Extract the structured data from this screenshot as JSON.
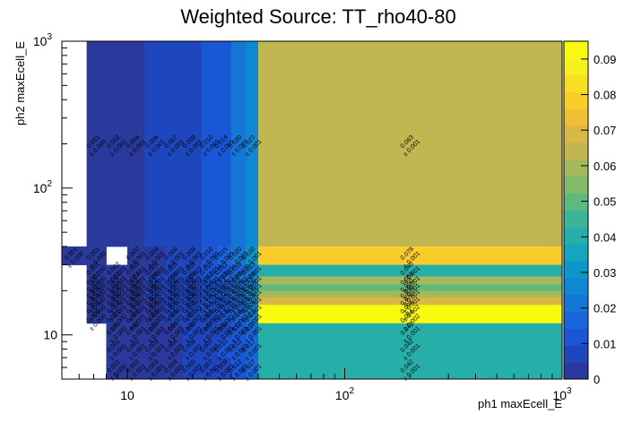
{
  "chart_data": {
    "type": "heatmap",
    "title": "Weighted Source: TT_rho40-80",
    "xlabel": "ph1 maxEcell_E",
    "ylabel": "ph2 maxEcell_E",
    "x_scale": "log",
    "y_scale": "log",
    "xlim": [
      5,
      1000
    ],
    "ylim": [
      5,
      1000
    ],
    "x_ticks": [
      {
        "base": "10",
        "exp": "",
        "value": 10
      },
      {
        "base": "10",
        "exp": "2",
        "value": 100
      },
      {
        "base": "10",
        "exp": "3",
        "value": 1000
      }
    ],
    "y_ticks": [
      {
        "base": "10",
        "exp": "",
        "value": 10
      },
      {
        "base": "10",
        "exp": "2",
        "value": 100
      },
      {
        "base": "10",
        "exp": "3",
        "value": 1000
      }
    ],
    "x_edges": [
      5,
      6.5,
      8,
      10,
      12,
      15,
      18,
      22,
      26,
      30,
      35,
      40,
      1000
    ],
    "y_edges": [
      5,
      7,
      9.5,
      12,
      14,
      16,
      18,
      20,
      22,
      25,
      30,
      40,
      1000
    ],
    "z_range": [
      0,
      0.095
    ],
    "colorbar_ticks": [
      "0",
      "0.01",
      "0.02",
      "0.03",
      "0.04",
      "0.05",
      "0.06",
      "0.07",
      "0.08",
      "0.09"
    ],
    "colorbar_tick_values": [
      0,
      0.01,
      0.02,
      0.03,
      0.04,
      0.05,
      0.06,
      0.07,
      0.08,
      0.09
    ],
    "palette": [
      "#2a3a9c",
      "#1f47bd",
      "#1a57d6",
      "#1966da",
      "#1476d7",
      "#0e88d2",
      "#0a98c9",
      "#16a5bd",
      "#26afa9",
      "#3cb495",
      "#5cba7f",
      "#7fbb6a",
      "#a3b95c",
      "#c1b650",
      "#d8b946",
      "#efbf36",
      "#fbcd2b",
      "#f8df22",
      "#f5f11c",
      "#f9fb0e"
    ],
    "cells": [
      {
        "xi": 1,
        "yi": 11,
        "value": 0.001,
        "label": "0.001",
        "error": "± 0.000"
      },
      {
        "xi": 2,
        "yi": 11,
        "value": 0.002,
        "label": "0.002",
        "error": "± 0.001"
      },
      {
        "xi": 3,
        "yi": 11,
        "value": 0.004,
        "label": "0.004",
        "error": "± 0.001"
      },
      {
        "xi": 4,
        "yi": 11,
        "value": 0.006,
        "label": "0.006",
        "error": "± 0.001"
      },
      {
        "xi": 5,
        "yi": 11,
        "value": 0.007,
        "label": "0.007",
        "error": "± 0.001"
      },
      {
        "xi": 6,
        "yi": 11,
        "value": 0.009,
        "label": "0.009",
        "error": "± 0.001"
      },
      {
        "xi": 7,
        "yi": 11,
        "value": 0.01,
        "label": "0.010",
        "error": "± 0.001"
      },
      {
        "xi": 8,
        "yi": 11,
        "value": 0.014,
        "label": "0.014",
        "error": "± 0.001"
      },
      {
        "xi": 9,
        "yi": 11,
        "value": 0.02,
        "label": "0.020",
        "error": "± 0.001"
      },
      {
        "xi": 10,
        "yi": 11,
        "value": 0.027,
        "label": "0.027",
        "error": "± 0.001"
      },
      {
        "xi": 11,
        "yi": 11,
        "value": 0.063,
        "label": "0.063",
        "error": "± 0.001"
      },
      {
        "xi": 0,
        "yi": 10,
        "value": 0.001,
        "label": "0.001",
        "error": "± 0.000"
      },
      {
        "xi": 1,
        "yi": 10,
        "value": 0.001,
        "label": "0.001",
        "error": "± 0.000"
      },
      {
        "xi": 3,
        "yi": 10,
        "value": 0.002,
        "label": "0.002",
        "error": "± 0.001"
      },
      {
        "xi": 4,
        "yi": 10,
        "value": 0.004,
        "label": "0.004",
        "error": "± 0.001"
      },
      {
        "xi": 5,
        "yi": 10,
        "value": 0.006,
        "label": "0.006",
        "error": "± 0.001"
      },
      {
        "xi": 6,
        "yi": 10,
        "value": 0.008,
        "label": "0.008",
        "error": "± 0.001"
      },
      {
        "xi": 7,
        "yi": 10,
        "value": 0.01,
        "label": "0.010",
        "error": "± 0.001"
      },
      {
        "xi": 8,
        "yi": 10,
        "value": 0.015,
        "label": "0.015",
        "error": "± 0.001"
      },
      {
        "xi": 9,
        "yi": 10,
        "value": 0.02,
        "label": "0.020",
        "error": "± 0.001"
      },
      {
        "xi": 10,
        "yi": 10,
        "value": 0.03,
        "label": "0.030",
        "error": "± 0.001"
      },
      {
        "xi": 11,
        "yi": 10,
        "value": 0.078,
        "label": "0.078",
        "error": "± 0.001"
      },
      {
        "xi": 1,
        "yi": 9,
        "value": 0.001,
        "label": "0.001",
        "error": "± 0.000"
      },
      {
        "xi": 2,
        "yi": 9,
        "value": 0.002,
        "label": "0.002",
        "error": "± 0.001"
      },
      {
        "xi": 3,
        "yi": 9,
        "value": 0.003,
        "label": "0.003",
        "error": "± 0.001"
      },
      {
        "xi": 4,
        "yi": 9,
        "value": 0.004,
        "label": "0.004",
        "error": "± 0.001"
      },
      {
        "xi": 5,
        "yi": 9,
        "value": 0.005,
        "label": "0.005",
        "error": "± 0.001"
      },
      {
        "xi": 6,
        "yi": 9,
        "value": 0.008,
        "label": "0.008",
        "error": "± 0.001"
      },
      {
        "xi": 7,
        "yi": 9,
        "value": 0.01,
        "label": "0.010",
        "error": "± 0.001"
      },
      {
        "xi": 8,
        "yi": 9,
        "value": 0.012,
        "label": "0.012",
        "error": "± 0.001"
      },
      {
        "xi": 9,
        "yi": 9,
        "value": 0.016,
        "label": "0.016",
        "error": "± 0.001"
      },
      {
        "xi": 10,
        "yi": 9,
        "value": 0.023,
        "label": "0.023",
        "error": "± 0.001"
      },
      {
        "xi": 11,
        "yi": 9,
        "value": 0.04,
        "label": "0.040",
        "error": "± 0.001"
      },
      {
        "xi": 1,
        "yi": 8,
        "value": 0.001,
        "label": "0.001",
        "error": "± 0.000"
      },
      {
        "xi": 2,
        "yi": 8,
        "value": 0.002,
        "label": "0.002",
        "error": "± 0.001"
      },
      {
        "xi": 3,
        "yi": 8,
        "value": 0.003,
        "label": "0.003",
        "error": "± 0.001"
      },
      {
        "xi": 4,
        "yi": 8,
        "value": 0.005,
        "label": "0.005",
        "error": "± 0.001"
      },
      {
        "xi": 5,
        "yi": 8,
        "value": 0.006,
        "label": "0.006",
        "error": "± 0.001"
      },
      {
        "xi": 6,
        "yi": 8,
        "value": 0.009,
        "label": "0.009",
        "error": "± 0.001"
      },
      {
        "xi": 7,
        "yi": 8,
        "value": 0.012,
        "label": "0.012",
        "error": "± 0.001"
      },
      {
        "xi": 8,
        "yi": 8,
        "value": 0.015,
        "label": "0.015",
        "error": "± 0.001"
      },
      {
        "xi": 9,
        "yi": 8,
        "value": 0.02,
        "label": "0.020",
        "error": "± 0.001"
      },
      {
        "xi": 10,
        "yi": 8,
        "value": 0.028,
        "label": "0.028",
        "error": "± 0.001"
      },
      {
        "xi": 11,
        "yi": 8,
        "value": 0.059,
        "label": "0.059",
        "error": "± 0.001"
      },
      {
        "xi": 1,
        "yi": 7,
        "value": 0.001,
        "label": "0.001",
        "error": "± 0.000"
      },
      {
        "xi": 2,
        "yi": 7,
        "value": 0.002,
        "label": "0.002",
        "error": "± 0.001"
      },
      {
        "xi": 3,
        "yi": 7,
        "value": 0.003,
        "label": "0.003",
        "error": "± 0.001"
      },
      {
        "xi": 4,
        "yi": 7,
        "value": 0.004,
        "label": "0.004",
        "error": "± 0.001"
      },
      {
        "xi": 5,
        "yi": 7,
        "value": 0.006,
        "label": "0.006",
        "error": "± 0.001"
      },
      {
        "xi": 6,
        "yi": 7,
        "value": 0.008,
        "label": "0.008",
        "error": "± 0.001"
      },
      {
        "xi": 7,
        "yi": 7,
        "value": 0.011,
        "label": "0.011",
        "error": "± 0.001"
      },
      {
        "xi": 8,
        "yi": 7,
        "value": 0.014,
        "label": "0.014",
        "error": "± 0.001"
      },
      {
        "xi": 9,
        "yi": 7,
        "value": 0.019,
        "label": "0.019",
        "error": "± 0.001"
      },
      {
        "xi": 10,
        "yi": 7,
        "value": 0.026,
        "label": "0.026",
        "error": "± 0.001"
      },
      {
        "xi": 11,
        "yi": 7,
        "value": 0.05,
        "label": "0.050",
        "error": "± 0.001"
      },
      {
        "xi": 1,
        "yi": 6,
        "value": 0.001,
        "label": "0.001",
        "error": "± 0.000"
      },
      {
        "xi": 2,
        "yi": 6,
        "value": 0.002,
        "label": "0.002",
        "error": "± 0.001"
      },
      {
        "xi": 3,
        "yi": 6,
        "value": 0.003,
        "label": "0.003",
        "error": "± 0.001"
      },
      {
        "xi": 4,
        "yi": 6,
        "value": 0.005,
        "label": "0.005",
        "error": "± 0.001"
      },
      {
        "xi": 5,
        "yi": 6,
        "value": 0.007,
        "label": "0.007",
        "error": "± 0.001"
      },
      {
        "xi": 6,
        "yi": 6,
        "value": 0.009,
        "label": "0.009",
        "error": "± 0.001"
      },
      {
        "xi": 7,
        "yi": 6,
        "value": 0.012,
        "label": "0.012",
        "error": "± 0.001"
      },
      {
        "xi": 8,
        "yi": 6,
        "value": 0.016,
        "label": "0.016",
        "error": "± 0.001"
      },
      {
        "xi": 9,
        "yi": 6,
        "value": 0.021,
        "label": "0.021",
        "error": "± 0.001"
      },
      {
        "xi": 10,
        "yi": 6,
        "value": 0.03,
        "label": "0.030",
        "error": "± 0.001"
      },
      {
        "xi": 11,
        "yi": 6,
        "value": 0.059,
        "label": "0.059",
        "error": "± 0.001"
      },
      {
        "xi": 1,
        "yi": 5,
        "value": 0.001,
        "label": "0.001",
        "error": "± 0.000"
      },
      {
        "xi": 2,
        "yi": 5,
        "value": 0.002,
        "label": "0.002",
        "error": "± 0.001"
      },
      {
        "xi": 3,
        "yi": 5,
        "value": 0.003,
        "label": "0.003",
        "error": "± 0.001"
      },
      {
        "xi": 4,
        "yi": 5,
        "value": 0.004,
        "label": "0.004",
        "error": "± 0.001"
      },
      {
        "xi": 5,
        "yi": 5,
        "value": 0.006,
        "label": "0.006",
        "error": "± 0.001"
      },
      {
        "xi": 6,
        "yi": 5,
        "value": 0.008,
        "label": "0.008",
        "error": "± 0.001"
      },
      {
        "xi": 7,
        "yi": 5,
        "value": 0.011,
        "label": "0.011",
        "error": "± 0.001"
      },
      {
        "xi": 8,
        "yi": 5,
        "value": 0.014,
        "label": "0.014",
        "error": "± 0.001"
      },
      {
        "xi": 9,
        "yi": 5,
        "value": 0.019,
        "label": "0.019",
        "error": "± 0.001"
      },
      {
        "xi": 10,
        "yi": 5,
        "value": 0.025,
        "label": "0.025",
        "error": "± 0.001"
      },
      {
        "xi": 11,
        "yi": 5,
        "value": 0.07,
        "label": "0.070",
        "error": "± 0.001"
      },
      {
        "xi": 1,
        "yi": 4,
        "value": 0.001,
        "label": "0.001",
        "error": "± 0.000"
      },
      {
        "xi": 2,
        "yi": 4,
        "value": 0.002,
        "label": "0.002",
        "error": "± 0.001"
      },
      {
        "xi": 3,
        "yi": 4,
        "value": 0.003,
        "label": "0.003",
        "error": "± 0.001"
      },
      {
        "xi": 4,
        "yi": 4,
        "value": 0.004,
        "label": "0.004",
        "error": "± 0.001"
      },
      {
        "xi": 5,
        "yi": 4,
        "value": 0.006,
        "label": "0.006",
        "error": "± 0.001"
      },
      {
        "xi": 6,
        "yi": 4,
        "value": 0.008,
        "label": "0.008",
        "error": "± 0.001"
      },
      {
        "xi": 7,
        "yi": 4,
        "value": 0.011,
        "label": "0.011",
        "error": "± 0.001"
      },
      {
        "xi": 8,
        "yi": 4,
        "value": 0.013,
        "label": "0.013",
        "error": "± 0.001"
      },
      {
        "xi": 9,
        "yi": 4,
        "value": 0.018,
        "label": "0.018",
        "error": "± 0.001"
      },
      {
        "xi": 10,
        "yi": 4,
        "value": 0.024,
        "label": "0.024",
        "error": "± 0.001"
      },
      {
        "xi": 11,
        "yi": 4,
        "value": 0.094,
        "label": "0.094",
        "error": "± 0.002"
      },
      {
        "xi": 1,
        "yi": 3,
        "value": 0.0,
        "label": "0.000",
        "error": "± 0.000"
      },
      {
        "xi": 2,
        "yi": 3,
        "value": 0.001,
        "label": "0.001",
        "error": "± 0.000"
      },
      {
        "xi": 3,
        "yi": 3,
        "value": 0.002,
        "label": "0.002",
        "error": "± 0.001"
      },
      {
        "xi": 4,
        "yi": 3,
        "value": 0.003,
        "label": "0.003",
        "error": "± 0.001"
      },
      {
        "xi": 5,
        "yi": 3,
        "value": 0.005,
        "label": "0.005",
        "error": "± 0.001"
      },
      {
        "xi": 6,
        "yi": 3,
        "value": 0.007,
        "label": "0.007",
        "error": "± 0.001"
      },
      {
        "xi": 7,
        "yi": 3,
        "value": 0.009,
        "label": "0.009",
        "error": "± 0.001"
      },
      {
        "xi": 8,
        "yi": 3,
        "value": 0.013,
        "label": "0.013",
        "error": "± 0.001"
      },
      {
        "xi": 9,
        "yi": 3,
        "value": 0.016,
        "label": "0.016",
        "error": "± 0.001"
      },
      {
        "xi": 10,
        "yi": 3,
        "value": 0.023,
        "label": "0.023",
        "error": "± 0.001"
      },
      {
        "xi": 11,
        "yi": 3,
        "value": 0.094,
        "label": "0.094",
        "error": "± 0.002"
      },
      {
        "xi": 2,
        "yi": 2,
        "value": 0.001,
        "label": "0.001",
        "error": "± 0.000"
      },
      {
        "xi": 3,
        "yi": 2,
        "value": 0.002,
        "label": "0.002",
        "error": "± 0.001"
      },
      {
        "xi": 4,
        "yi": 2,
        "value": 0.003,
        "label": "0.003",
        "error": "± 0.001"
      },
      {
        "xi": 5,
        "yi": 2,
        "value": 0.004,
        "label": "0.004",
        "error": "± 0.001"
      },
      {
        "xi": 6,
        "yi": 2,
        "value": 0.005,
        "label": "0.005",
        "error": "± 0.001"
      },
      {
        "xi": 7,
        "yi": 2,
        "value": 0.007,
        "label": "0.007",
        "error": "± 0.001"
      },
      {
        "xi": 8,
        "yi": 2,
        "value": 0.009,
        "label": "0.009",
        "error": "± 0.001"
      },
      {
        "xi": 9,
        "yi": 2,
        "value": 0.012,
        "label": "0.012",
        "error": "± 0.001"
      },
      {
        "xi": 10,
        "yi": 2,
        "value": 0.017,
        "label": "0.017",
        "error": "± 0.001"
      },
      {
        "xi": 11,
        "yi": 2,
        "value": 0.042,
        "label": "0.042",
        "error": "± 0.001"
      },
      {
        "xi": 2,
        "yi": 1,
        "value": 0.001,
        "label": "0.001",
        "error": "± 0.000"
      },
      {
        "xi": 3,
        "yi": 1,
        "value": 0.002,
        "label": "0.002",
        "error": "± 0.001"
      },
      {
        "xi": 4,
        "yi": 1,
        "value": 0.003,
        "label": "0.003",
        "error": "± 0.001"
      },
      {
        "xi": 5,
        "yi": 1,
        "value": 0.004,
        "label": "0.004",
        "error": "± 0.001"
      },
      {
        "xi": 6,
        "yi": 1,
        "value": 0.006,
        "label": "0.006",
        "error": "± 0.001"
      },
      {
        "xi": 7,
        "yi": 1,
        "value": 0.007,
        "label": "0.007",
        "error": "± 0.001"
      },
      {
        "xi": 8,
        "yi": 1,
        "value": 0.01,
        "label": "0.010",
        "error": "± 0.001"
      },
      {
        "xi": 9,
        "yi": 1,
        "value": 0.012,
        "label": "0.012",
        "error": "± 0.001"
      },
      {
        "xi": 10,
        "yi": 1,
        "value": 0.017,
        "label": "0.017",
        "error": "± 0.001"
      },
      {
        "xi": 11,
        "yi": 1,
        "value": 0.042,
        "label": "0.042",
        "error": "± 0.001"
      },
      {
        "xi": 2,
        "yi": 0,
        "value": 0.001,
        "label": "0.001",
        "error": "± 0.000"
      },
      {
        "xi": 3,
        "yi": 0,
        "value": 0.002,
        "label": "0.002",
        "error": "± 0.001"
      },
      {
        "xi": 4,
        "yi": 0,
        "value": 0.003,
        "label": "0.003",
        "error": "± 0.001"
      },
      {
        "xi": 5,
        "yi": 0,
        "value": 0.004,
        "label": "0.004",
        "error": "± 0.001"
      },
      {
        "xi": 6,
        "yi": 0,
        "value": 0.005,
        "label": "0.005",
        "error": "± 0.001"
      },
      {
        "xi": 7,
        "yi": 0,
        "value": 0.007,
        "label": "0.007",
        "error": "± 0.001"
      },
      {
        "xi": 8,
        "yi": 0,
        "value": 0.009,
        "label": "0.009",
        "error": "± 0.001"
      },
      {
        "xi": 9,
        "yi": 0,
        "value": 0.012,
        "label": "0.012",
        "error": "± 0.001"
      },
      {
        "xi": 10,
        "yi": 0,
        "value": 0.017,
        "label": "0.017",
        "error": "± 0.001"
      },
      {
        "xi": 11,
        "yi": 0,
        "value": 0.042,
        "label": "0.042",
        "error": "± 0.001"
      }
    ]
  }
}
